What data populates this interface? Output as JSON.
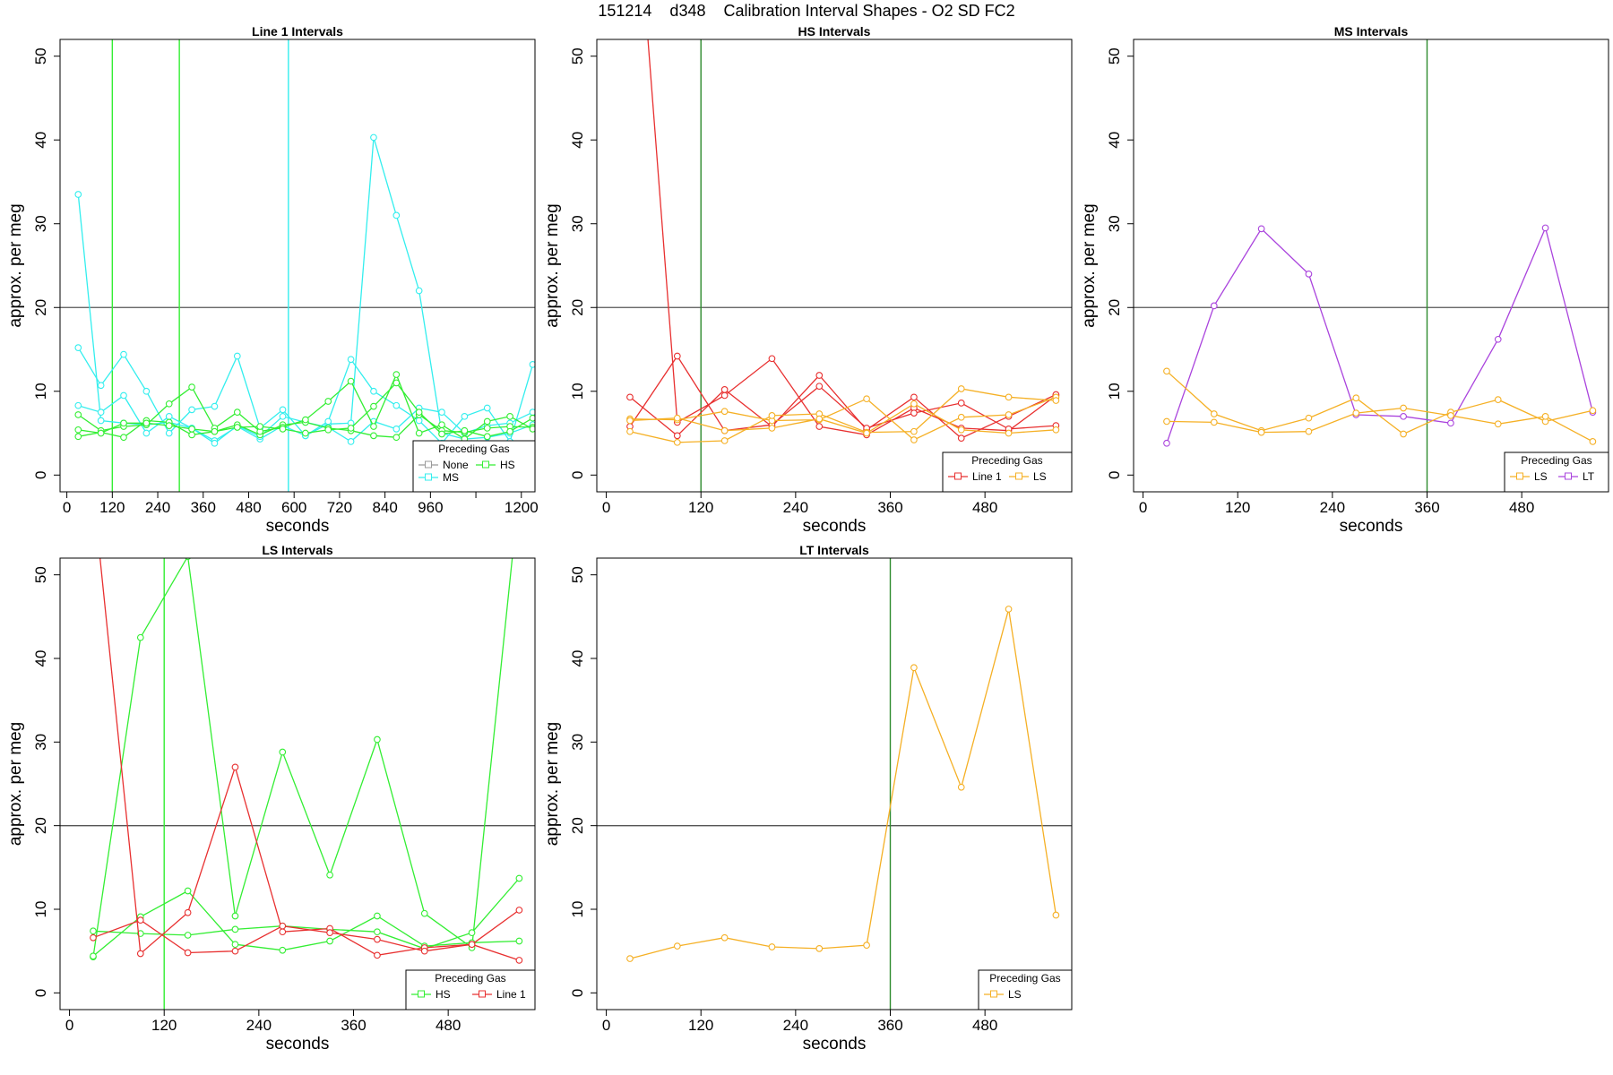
{
  "figure": {
    "title": "151214    d348    Calibration Interval Shapes - O2 SD FC2"
  },
  "colors": {
    "None": "#999999",
    "HS": "#33ee33",
    "MS": "#33eeee",
    "Line 1": "#e83030",
    "LS": "#f5b025",
    "LT": "#aa44dd",
    "hline": "#555555",
    "frame": "#000000"
  },
  "chart_data": [
    {
      "type": "line",
      "title": "Line 1 Intervals",
      "xlabel": "seconds",
      "ylabel": "approx. per meg",
      "xlim": [
        -18,
        1236
      ],
      "ylim": [
        -2,
        52
      ],
      "xticks": [
        0,
        120,
        240,
        360,
        480,
        600,
        720,
        840,
        960,
        1080,
        1200
      ],
      "xtick_labels": [
        "0",
        "120",
        "240",
        "360",
        "480",
        "600",
        "720",
        "840",
        "960",
        "",
        "1200"
      ],
      "yticks": [
        0,
        10,
        20,
        30,
        40,
        50
      ],
      "hline": 20,
      "vlines": [
        {
          "x": 120,
          "color": "HS"
        },
        {
          "x": 297,
          "color": "HS"
        },
        {
          "x": 585,
          "color": "MS"
        }
      ],
      "legend": {
        "title": "Preceding Gas",
        "entries": [
          "None",
          "HS",
          "MS"
        ],
        "columns": 2
      },
      "series": [
        {
          "name": "MS",
          "x": [
            30,
            90,
            150,
            210,
            270,
            330,
            390,
            450,
            510,
            570,
            630,
            690,
            750,
            810,
            870,
            930,
            990,
            1050,
            1110,
            1170,
            1230
          ],
          "y": [
            33.5,
            6.5,
            6.2,
            6.0,
            6.3,
            5.6,
            4.1,
            5.8,
            4.3,
            5.9,
            4.7,
            6.1,
            6.2,
            40.3,
            31.0,
            22.0,
            5.0,
            4.3,
            4.5,
            5.0,
            6.0
          ]
        },
        {
          "name": "MS",
          "x": [
            30,
            90,
            150,
            210,
            270,
            330,
            390,
            450,
            510,
            570,
            630,
            690,
            750,
            810,
            870,
            930,
            990,
            1050,
            1110,
            1170,
            1230
          ],
          "y": [
            15.2,
            10.7,
            14.4,
            10.0,
            5.0,
            7.8,
            8.2,
            14.2,
            5.6,
            7.8,
            4.7,
            6.4,
            13.8,
            10.0,
            8.3,
            6.5,
            3.8,
            7.0,
            8.0,
            4.0,
            13.2
          ]
        },
        {
          "name": "MS",
          "x": [
            30,
            90,
            150,
            210,
            270,
            330,
            390,
            450,
            510,
            570,
            630,
            690,
            750,
            810,
            870,
            930,
            990,
            1050,
            1110,
            1170,
            1230
          ],
          "y": [
            8.3,
            7.5,
            9.5,
            5.0,
            7.0,
            5.6,
            3.8,
            5.9,
            4.6,
            7.0,
            6.3,
            5.7,
            4.0,
            6.4,
            5.5,
            8.0,
            7.5,
            5.0,
            5.9,
            6.2,
            7.5
          ]
        },
        {
          "name": "HS",
          "x": [
            30,
            90,
            150,
            210,
            270,
            330,
            390,
            450,
            510,
            570,
            630,
            690,
            750,
            810,
            870,
            930,
            990,
            1050,
            1110,
            1170,
            1230
          ],
          "y": [
            4.6,
            5.1,
            4.5,
            6.5,
            6.3,
            4.8,
            5.2,
            6.0,
            4.8,
            6.0,
            6.3,
            5.6,
            5.3,
            4.7,
            4.5,
            7.2,
            5.3,
            5.1,
            5.6,
            5.8,
            5.7
          ]
        },
        {
          "name": "HS",
          "x": [
            30,
            90,
            150,
            210,
            270,
            330,
            390,
            450,
            510,
            570,
            630,
            690,
            750,
            810,
            870,
            930,
            990,
            1050,
            1110,
            1170,
            1230
          ],
          "y": [
            7.2,
            5.3,
            5.8,
            6.0,
            8.5,
            10.5,
            5.6,
            7.5,
            5.2,
            5.7,
            6.6,
            8.8,
            11.2,
            5.8,
            12.0,
            5.0,
            6.0,
            4.3,
            6.4,
            7.0,
            5.5
          ]
        },
        {
          "name": "HS",
          "x": [
            30,
            90,
            150,
            210,
            270,
            330,
            390,
            450,
            510,
            570,
            630,
            690,
            750,
            810,
            870,
            930,
            990,
            1050,
            1110,
            1170,
            1230
          ],
          "y": [
            5.4,
            5.0,
            6.2,
            6.2,
            5.9,
            5.5,
            5.2,
            5.7,
            5.8,
            5.5,
            5.0,
            5.4,
            5.6,
            8.2,
            11.0,
            7.5,
            4.9,
            5.3,
            4.6,
            5.2,
            6.8
          ]
        }
      ]
    },
    {
      "type": "line",
      "title": "HS Intervals",
      "xlabel": "seconds",
      "ylabel": "approx. per meg",
      "xlim": [
        -12,
        590
      ],
      "ylim": [
        -2,
        52
      ],
      "xticks": [
        0,
        120,
        240,
        360,
        480
      ],
      "xtick_labels": [
        "0",
        "120",
        "240",
        "360",
        "480"
      ],
      "yticks": [
        0,
        10,
        20,
        30,
        40,
        50
      ],
      "hline": 20,
      "vlines": [
        {
          "x": 120,
          "color": "#2e8b2e"
        }
      ],
      "legend": {
        "title": "Preceding Gas",
        "entries": [
          "Line 1",
          "LS"
        ],
        "columns": 2
      },
      "series": [
        {
          "name": "Line 1",
          "x": [
            30,
            90,
            150,
            210,
            270,
            330,
            390,
            450,
            510,
            570
          ],
          "y": [
            80.0,
            6.3,
            9.5,
            13.9,
            5.8,
            4.8,
            8.0,
            5.6,
            5.3,
            9.5
          ]
        },
        {
          "name": "Line 1",
          "x": [
            30,
            90,
            150,
            210,
            270,
            330,
            390,
            450,
            510,
            570
          ],
          "y": [
            9.3,
            4.7,
            10.2,
            5.8,
            11.9,
            5.4,
            9.3,
            4.4,
            7.0,
            9.6
          ]
        },
        {
          "name": "Line 1",
          "x": [
            30,
            90,
            150,
            210,
            270,
            330,
            390,
            450,
            510,
            570
          ],
          "y": [
            5.8,
            14.2,
            5.3,
            6.0,
            10.6,
            5.6,
            7.4,
            8.6,
            5.5,
            5.9
          ]
        },
        {
          "name": "LS",
          "x": [
            30,
            90,
            150,
            210,
            270,
            330,
            390,
            450,
            510,
            570
          ],
          "y": [
            6.7,
            6.6,
            7.6,
            6.5,
            6.6,
            9.1,
            4.2,
            6.9,
            7.2,
            9.3
          ]
        },
        {
          "name": "LS",
          "x": [
            30,
            90,
            150,
            210,
            270,
            330,
            390,
            450,
            510,
            570
          ],
          "y": [
            5.2,
            3.9,
            4.1,
            7.1,
            7.3,
            5.1,
            5.2,
            10.3,
            9.3,
            8.9
          ]
        },
        {
          "name": "LS",
          "x": [
            30,
            90,
            150,
            210,
            270,
            330,
            390,
            450,
            510,
            570
          ],
          "y": [
            6.5,
            6.8,
            5.3,
            5.6,
            6.7,
            5.0,
            8.5,
            5.4,
            5.0,
            5.4
          ]
        }
      ]
    },
    {
      "type": "line",
      "title": "MS Intervals",
      "xlabel": "seconds",
      "ylabel": "approx. per meg",
      "xlim": [
        -12,
        590
      ],
      "ylim": [
        -2,
        52
      ],
      "xticks": [
        0,
        120,
        240,
        360,
        480
      ],
      "xtick_labels": [
        "0",
        "120",
        "240",
        "360",
        "480"
      ],
      "yticks": [
        0,
        10,
        20,
        30,
        40,
        50
      ],
      "hline": 20,
      "vlines": [
        {
          "x": 360,
          "color": "#2e8b2e"
        }
      ],
      "legend": {
        "title": "Preceding Gas",
        "entries": [
          "LS",
          "LT"
        ],
        "columns": 2
      },
      "series": [
        {
          "name": "LT",
          "x": [
            30,
            90,
            150,
            210,
            270,
            330,
            390,
            450,
            510,
            570
          ],
          "y": [
            3.8,
            20.2,
            29.4,
            24.0,
            7.2,
            7.0,
            6.2,
            16.2,
            29.5,
            7.5
          ]
        },
        {
          "name": "LS",
          "x": [
            30,
            90,
            150,
            210,
            270,
            330,
            390,
            450,
            510,
            570
          ],
          "y": [
            12.4,
            7.3,
            5.3,
            6.8,
            9.2,
            4.9,
            7.5,
            9.0,
            6.4,
            7.7
          ]
        },
        {
          "name": "LS",
          "x": [
            30,
            90,
            150,
            210,
            270,
            330,
            390,
            450,
            510,
            570
          ],
          "y": [
            6.4,
            6.3,
            5.1,
            5.2,
            7.4,
            8.0,
            7.1,
            6.1,
            7.0,
            4.0
          ]
        }
      ]
    },
    {
      "type": "line",
      "title": "LS Intervals",
      "xlabel": "seconds",
      "ylabel": "approx. per meg",
      "xlim": [
        -12,
        590
      ],
      "ylim": [
        -2,
        52
      ],
      "xticks": [
        0,
        120,
        240,
        360,
        480
      ],
      "xtick_labels": [
        "0",
        "120",
        "240",
        "360",
        "480"
      ],
      "yticks": [
        0,
        10,
        20,
        30,
        40,
        50
      ],
      "hline": 20,
      "vlines": [
        {
          "x": 120,
          "color": "HS"
        }
      ],
      "legend": {
        "title": "Preceding Gas",
        "entries": [
          "HS",
          "Line 1"
        ],
        "columns": 2
      },
      "series": [
        {
          "name": "HS",
          "x": [
            30,
            90,
            150,
            210,
            270,
            330,
            390,
            450,
            510,
            570
          ],
          "y": [
            4.3,
            42.5,
            52.2,
            9.2,
            28.8,
            14.1,
            30.3,
            9.5,
            5.4,
            60.0
          ]
        },
        {
          "name": "HS",
          "x": [
            30,
            90,
            150,
            210,
            270,
            330,
            390,
            450,
            510,
            570
          ],
          "y": [
            7.4,
            7.1,
            6.9,
            7.6,
            8.0,
            7.6,
            7.3,
            5.3,
            7.2,
            13.7
          ]
        },
        {
          "name": "HS",
          "x": [
            30,
            90,
            150,
            210,
            270,
            330,
            390,
            450,
            510,
            570
          ],
          "y": [
            4.4,
            9.1,
            12.2,
            5.8,
            5.1,
            6.2,
            9.2,
            5.6,
            6.0,
            6.2
          ]
        },
        {
          "name": "Line 1",
          "x": [
            30,
            90,
            150,
            210,
            270,
            330,
            390,
            450,
            510,
            570
          ],
          "y": [
            60.0,
            4.7,
            9.6,
            27.0,
            7.3,
            7.7,
            4.5,
            5.4,
            5.8,
            9.9
          ]
        },
        {
          "name": "Line 1",
          "x": [
            30,
            90,
            150,
            210,
            270,
            330,
            390,
            450,
            510,
            570
          ],
          "y": [
            6.6,
            8.7,
            4.8,
            5.0,
            8.0,
            7.2,
            6.4,
            5.0,
            5.8,
            3.9
          ]
        }
      ]
    },
    {
      "type": "line",
      "title": "LT Intervals",
      "xlabel": "seconds",
      "ylabel": "approx. per meg",
      "xlim": [
        -12,
        590
      ],
      "ylim": [
        -2,
        52
      ],
      "xticks": [
        0,
        120,
        240,
        360,
        480
      ],
      "xtick_labels": [
        "0",
        "120",
        "240",
        "360",
        "480"
      ],
      "yticks": [
        0,
        10,
        20,
        30,
        40,
        50
      ],
      "hline": 20,
      "vlines": [
        {
          "x": 360,
          "color": "#2e8b2e"
        }
      ],
      "legend": {
        "title": "Preceding Gas",
        "entries": [
          "LS"
        ],
        "columns": 1
      },
      "series": [
        {
          "name": "LS",
          "x": [
            30,
            90,
            150,
            210,
            270,
            330,
            390,
            450,
            510,
            570
          ],
          "y": [
            4.1,
            5.6,
            6.6,
            5.5,
            5.3,
            5.7,
            38.9,
            24.6,
            45.9,
            9.3
          ]
        }
      ]
    }
  ]
}
